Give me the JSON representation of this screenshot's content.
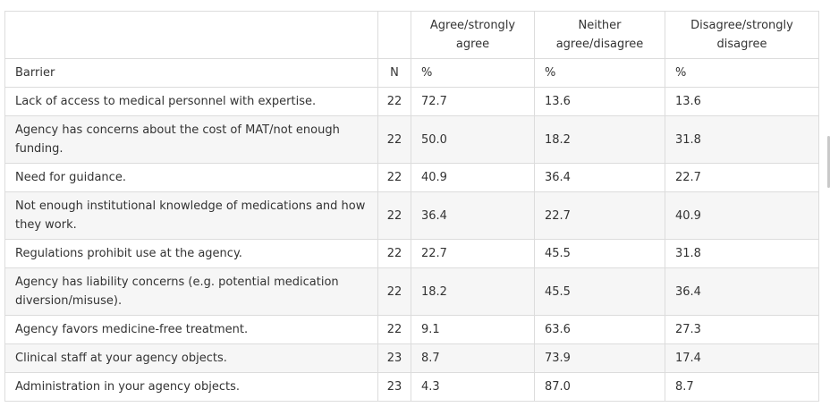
{
  "table": {
    "header": {
      "barrier_col": "",
      "n_col": "",
      "agree": "Agree/strongly agree",
      "neither": "Neither agree/disagree",
      "disagree": "Disagree/strongly disagree"
    },
    "subheader": {
      "barrier": "Barrier",
      "n": "N",
      "agree_unit": "%",
      "neither_unit": "%",
      "disagree_unit": "%"
    },
    "rows": [
      {
        "barrier": "Lack of access to medical personnel with expertise.",
        "n": "22",
        "agree": "72.7",
        "neither": "13.6",
        "disagree": "13.6"
      },
      {
        "barrier": "Agency has concerns about the cost of MAT/not enough funding.",
        "n": "22",
        "agree": "50.0",
        "neither": "18.2",
        "disagree": "31.8"
      },
      {
        "barrier": "Need for guidance.",
        "n": "22",
        "agree": "40.9",
        "neither": "36.4",
        "disagree": "22.7"
      },
      {
        "barrier": "Not enough institutional knowledge of medications and how they work.",
        "n": "22",
        "agree": "36.4",
        "neither": "22.7",
        "disagree": "40.9"
      },
      {
        "barrier": "Regulations prohibit use at the agency.",
        "n": "22",
        "agree": "22.7",
        "neither": "45.5",
        "disagree": "31.8"
      },
      {
        "barrier": "Agency has liability concerns (e.g. potential medication diversion/misuse).",
        "n": "22",
        "agree": "18.2",
        "neither": "45.5",
        "disagree": "36.4"
      },
      {
        "barrier": "Agency favors medicine-free treatment.",
        "n": "22",
        "agree": "9.1",
        "neither": "63.6",
        "disagree": "27.3"
      },
      {
        "barrier": "Clinical staff at your agency objects.",
        "n": "23",
        "agree": "8.7",
        "neither": "73.9",
        "disagree": "17.4"
      },
      {
        "barrier": "Administration in your agency objects.",
        "n": "23",
        "agree": "4.3",
        "neither": "87.0",
        "disagree": "8.7"
      }
    ]
  }
}
